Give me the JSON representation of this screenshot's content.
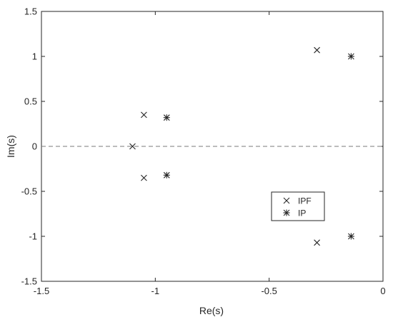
{
  "chart_data": {
    "type": "scatter",
    "title": "",
    "xlabel": "Re(s)",
    "ylabel": "Im(s)",
    "xlim": [
      -1.5,
      0
    ],
    "ylim": [
      -1.5,
      1.5
    ],
    "xticks": [
      -1.5,
      -1,
      -0.5,
      0
    ],
    "xtick_labels": [
      "-1.5",
      "-1",
      "-0.5",
      "0"
    ],
    "yticks": [
      -1.5,
      -1,
      -0.5,
      0,
      0.5,
      1,
      1.5
    ],
    "ytick_labels": [
      "-1.5",
      "-1",
      "-0.5",
      "0",
      "0.5",
      "1",
      "1.5"
    ],
    "grid": false,
    "reference_line": {
      "y": 0,
      "style": "dashed"
    },
    "legend": {
      "placement": "lower-right"
    },
    "series": [
      {
        "name": "IPF",
        "marker": "x",
        "points": [
          {
            "x": -1.1,
            "y": 0
          },
          {
            "x": -1.05,
            "y": 0.35
          },
          {
            "x": -1.05,
            "y": -0.35
          },
          {
            "x": -0.29,
            "y": 1.07
          },
          {
            "x": -0.29,
            "y": -1.07
          }
        ]
      },
      {
        "name": "IP",
        "marker": "asterisk",
        "points": [
          {
            "x": -0.95,
            "y": 0.32
          },
          {
            "x": -0.95,
            "y": -0.32
          },
          {
            "x": -0.14,
            "y": 1.0
          },
          {
            "x": -0.14,
            "y": -1.0
          }
        ]
      }
    ]
  }
}
